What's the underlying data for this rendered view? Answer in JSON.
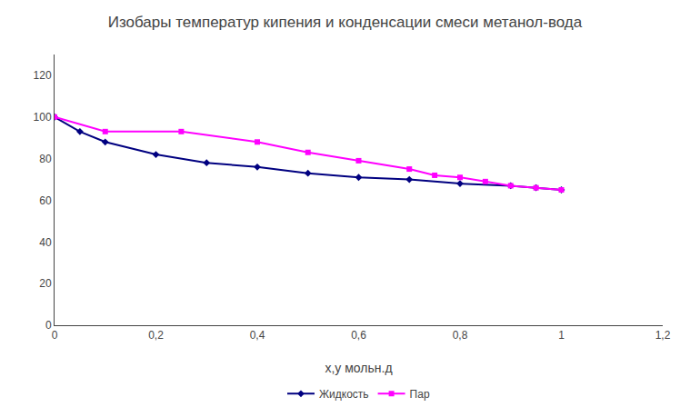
{
  "chart_data": {
    "type": "line",
    "title": "Изобары температур кипения и конденсации смеси метанол-вода",
    "x_label": "х,у мольн.д",
    "series": [
      {
        "name": "Жидкость",
        "color": "#000080",
        "marker": "diamond",
        "line_style": "solid",
        "x": [
          0,
          0.05,
          0.1,
          0.2,
          0.3,
          0.4,
          0.5,
          0.6,
          0.7,
          0.8,
          0.9,
          0.95,
          1.0
        ],
        "values": [
          100,
          93,
          88,
          82,
          78,
          76,
          73,
          71,
          70,
          68,
          67,
          66,
          65
        ]
      },
      {
        "name": "Пар",
        "color": "#FF00FF",
        "marker": "square",
        "line_style": "solid",
        "x": [
          0,
          0.1,
          0.25,
          0.4,
          0.5,
          0.6,
          0.7,
          0.75,
          0.8,
          0.85,
          0.9,
          0.95,
          1.0
        ],
        "values": [
          100,
          93,
          93,
          88,
          83,
          79,
          75,
          72,
          71,
          69,
          67,
          66,
          65
        ]
      }
    ],
    "xlim": [
      0,
      1.2
    ],
    "ylim": [
      0,
      130
    ],
    "xticks": [
      0,
      {
        "value": 0.2,
        "label": "0,2"
      },
      {
        "value": 0.4,
        "label": "0,4"
      },
      {
        "value": 0.6,
        "label": "0,6"
      },
      {
        "value": 0.8,
        "label": "0,8"
      },
      1,
      {
        "value": 1.2,
        "label": "1,2"
      }
    ],
    "yticks": [
      0,
      20,
      40,
      60,
      80,
      100,
      120
    ],
    "grid": false,
    "legend": "bottom"
  }
}
